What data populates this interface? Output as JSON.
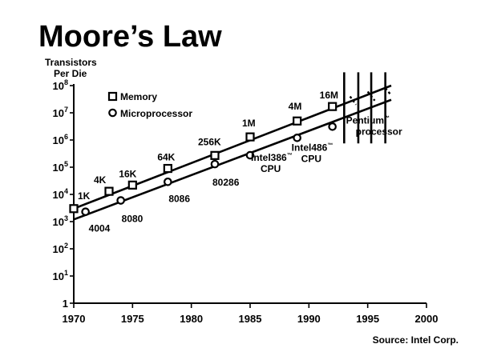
{
  "chart_data": {
    "type": "scatter",
    "title": "Moore’s Law",
    "ylabel_line1": "Transistors",
    "ylabel_line2": "Per Die",
    "xlabel": "",
    "source": "Source: Intel Corp.",
    "xlim": [
      1970,
      2000
    ],
    "ylim": [
      1,
      100000000
    ],
    "yscale": "log",
    "x_ticks": [
      "1970",
      "1975",
      "1980",
      "1985",
      "1990",
      "1995",
      "2000"
    ],
    "y_ticks": [
      {
        "base": "10",
        "exp": "8",
        "value": 100000000
      },
      {
        "base": "10",
        "exp": "7",
        "value": 10000000
      },
      {
        "base": "10",
        "exp": "6",
        "value": 1000000
      },
      {
        "base": "10",
        "exp": "5",
        "value": 100000
      },
      {
        "base": "10",
        "exp": "4",
        "value": 10000
      },
      {
        "base": "10",
        "exp": "3",
        "value": 1000
      },
      {
        "base": "10",
        "exp": "2",
        "value": 100
      },
      {
        "base": "10",
        "exp": "1",
        "value": 10
      },
      {
        "base": "1",
        "exp": "",
        "value": 1
      }
    ],
    "legend": {
      "placement": "top-left",
      "entries": [
        "Memory",
        "Microprocessor"
      ]
    },
    "series": [
      {
        "name": "Memory",
        "marker": "square",
        "points": [
          {
            "x": 1970,
            "y": 3000,
            "label": "1K"
          },
          {
            "x": 1973,
            "y": 13000,
            "label": "4K"
          },
          {
            "x": 1975,
            "y": 22000,
            "label": "16K"
          },
          {
            "x": 1978,
            "y": 90000,
            "label": "64K"
          },
          {
            "x": 1982,
            "y": 270000,
            "label": "256K"
          },
          {
            "x": 1985,
            "y": 1300000,
            "label": "1M"
          },
          {
            "x": 1989,
            "y": 5000000,
            "label": "4M"
          },
          {
            "x": 1992,
            "y": 17000000,
            "label": "16M"
          }
        ],
        "trend": {
          "from": [
            1970,
            3000
          ],
          "to": [
            1997,
            100000000
          ]
        }
      },
      {
        "name": "Microprocessor",
        "marker": "circle",
        "points": [
          {
            "x": 1971,
            "y": 2300,
            "label": "4004"
          },
          {
            "x": 1974,
            "y": 6000,
            "label": "8080"
          },
          {
            "x": 1978,
            "y": 29000,
            "label": "8086"
          },
          {
            "x": 1982,
            "y": 130000,
            "label": "80286"
          },
          {
            "x": 1985,
            "y": 275000,
            "label_parts": [
              "Intel386",
              "™",
              "CPU"
            ]
          },
          {
            "x": 1989,
            "y": 1200000,
            "label_parts": [
              "Intel486",
              "™",
              "CPU"
            ]
          },
          {
            "x": 1992,
            "y": 3100000,
            "label_parts": [
              "Pentium",
              "™",
              "processor"
            ]
          }
        ],
        "trend": {
          "from": [
            1970,
            1200
          ],
          "to": [
            1997,
            30000000
          ]
        }
      }
    ]
  }
}
